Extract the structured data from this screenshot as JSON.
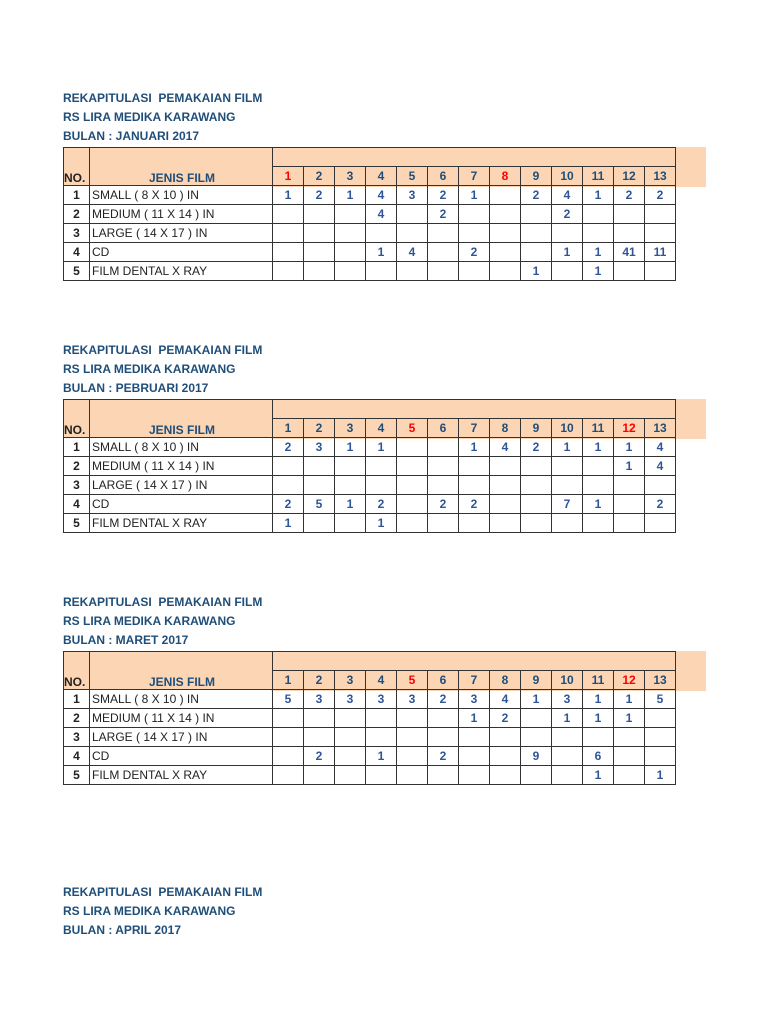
{
  "header_color": "#fcd5b4",
  "text_color": "#1f4e79",
  "holiday_color": "#ff0000",
  "columns": {
    "no": "NO.",
    "name": "JENIS FILM"
  },
  "items": [
    {
      "no": "1",
      "name": "SMALL  ( 8 X 10 ) IN"
    },
    {
      "no": "2",
      "name": "MEDIUM ( 11 X 14 ) IN"
    },
    {
      "no": "3",
      "name": "LARGE  ( 14 X 17 ) IN"
    },
    {
      "no": "4",
      "name": "CD"
    },
    {
      "no": "5",
      "name": "FILM DENTAL X RAY"
    }
  ],
  "days": [
    "1",
    "2",
    "3",
    "4",
    "5",
    "6",
    "7",
    "8",
    "9",
    "10",
    "11",
    "12",
    "13"
  ],
  "reports": [
    {
      "title1": "REKAPITULASI  PEMAKAIAN FILM",
      "title2": "RS LIRA MEDIKA KARAWANG",
      "title3": "BULAN : JANUARI 2017",
      "red_days": [
        "1",
        "8"
      ],
      "rows": [
        [
          "1",
          "2",
          "1",
          "4",
          "3",
          "2",
          "1",
          "",
          "2",
          "4",
          "1",
          "2",
          "2"
        ],
        [
          "",
          "",
          "",
          "4",
          "",
          "2",
          "",
          "",
          "",
          "2",
          "",
          "",
          ""
        ],
        [
          "",
          "",
          "",
          "",
          "",
          "",
          "",
          "",
          "",
          "",
          "",
          "",
          ""
        ],
        [
          "",
          "",
          "",
          "1",
          "4",
          "",
          "2",
          "",
          "",
          "1",
          "1",
          "41",
          "11"
        ],
        [
          "",
          "",
          "",
          "",
          "",
          "",
          "",
          "",
          "1",
          "",
          "1",
          "",
          ""
        ]
      ]
    },
    {
      "title1": "REKAPITULASI  PEMAKAIAN FILM",
      "title2": "RS LIRA MEDIKA KARAWANG",
      "title3": "BULAN : PEBRUARI 2017",
      "red_days": [
        "5",
        "12"
      ],
      "rows": [
        [
          "2",
          "3",
          "1",
          "1",
          "",
          "",
          "1",
          "4",
          "2",
          "1",
          "1",
          "1",
          "4"
        ],
        [
          "",
          "",
          "",
          "",
          "",
          "",
          "",
          "",
          "",
          "",
          "",
          "1",
          "4"
        ],
        [
          "",
          "",
          "",
          "",
          "",
          "",
          "",
          "",
          "",
          "",
          "",
          "",
          ""
        ],
        [
          "2",
          "5",
          "1",
          "2",
          "",
          "2",
          "2",
          "",
          "",
          "7",
          "1",
          "",
          "2"
        ],
        [
          "1",
          "",
          "",
          "1",
          "",
          "",
          "",
          "",
          "",
          "",
          "",
          "",
          ""
        ]
      ]
    },
    {
      "title1": "REKAPITULASI  PEMAKAIAN FILM",
      "title2": "RS LIRA MEDIKA KARAWANG",
      "title3": "BULAN : MARET 2017",
      "red_days": [
        "5",
        "12"
      ],
      "rows": [
        [
          "5",
          "3",
          "3",
          "3",
          "3",
          "2",
          "3",
          "4",
          "1",
          "3",
          "1",
          "1",
          "5"
        ],
        [
          "",
          "",
          "",
          "",
          "",
          "",
          "1",
          "2",
          "",
          "1",
          "1",
          "1",
          ""
        ],
        [
          "",
          "",
          "",
          "",
          "",
          "",
          "",
          "",
          "",
          "",
          "",
          "",
          ""
        ],
        [
          "",
          "2",
          "",
          "1",
          "",
          "2",
          "",
          "",
          "9",
          "",
          "6",
          "",
          ""
        ],
        [
          "",
          "",
          "",
          "",
          "",
          "",
          "",
          "",
          "",
          "",
          "1",
          "",
          "1"
        ]
      ]
    },
    {
      "title1": "REKAPITULASI  PEMAKAIAN FILM",
      "title2": "RS LIRA MEDIKA KARAWANG",
      "title3": "BULAN : APRIL 2017"
    }
  ]
}
